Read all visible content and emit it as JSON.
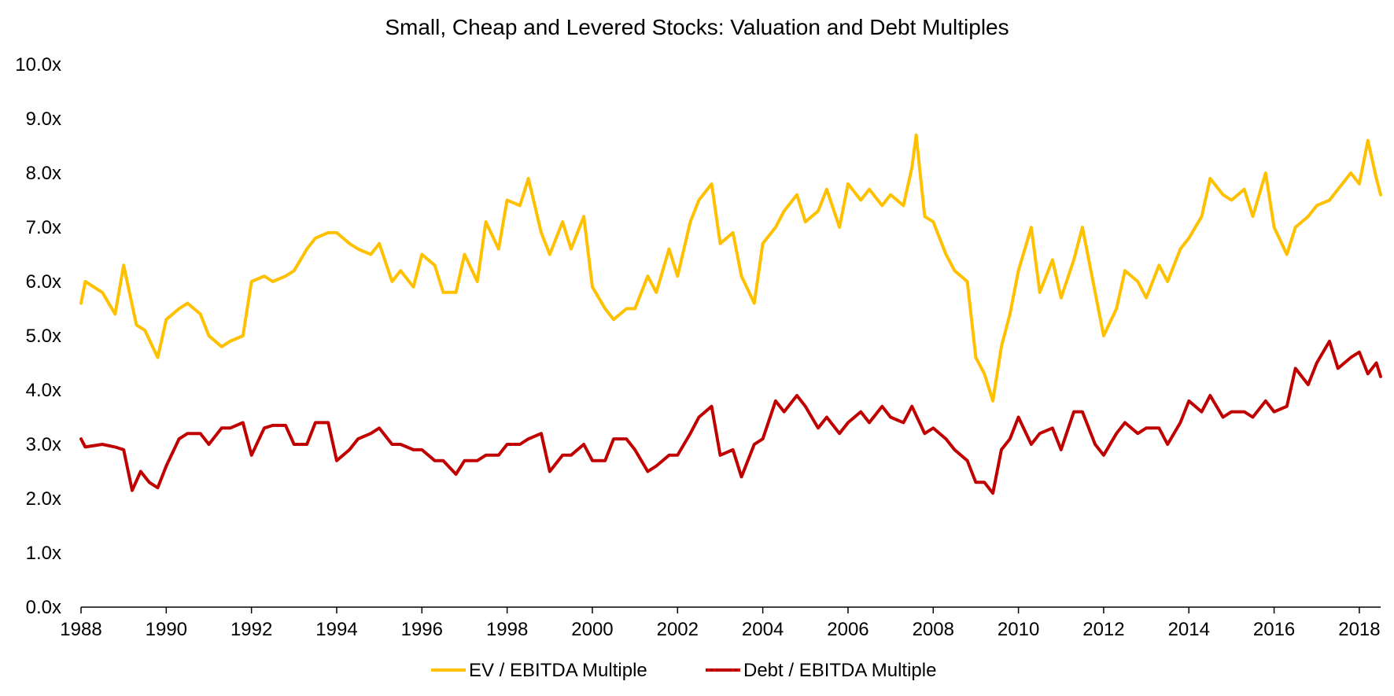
{
  "chart_data": {
    "type": "line",
    "title": "Small, Cheap and Levered Stocks: Valuation and Debt Multiples",
    "xlabel": "",
    "ylabel": "",
    "xlim": [
      1988,
      2018.5
    ],
    "ylim": [
      0,
      10
    ],
    "x_ticks": [
      1988,
      1990,
      1992,
      1994,
      1996,
      1998,
      2000,
      2002,
      2004,
      2006,
      2008,
      2010,
      2012,
      2014,
      2016,
      2018
    ],
    "y_ticks": [
      "0.0x",
      "1.0x",
      "2.0x",
      "3.0x",
      "4.0x",
      "5.0x",
      "6.0x",
      "7.0x",
      "8.0x",
      "9.0x",
      "10.0x"
    ],
    "grid": false,
    "legend_position": "bottom",
    "series": [
      {
        "name": "EV / EBITDA Multiple",
        "color": "#FFC000",
        "x": [
          1988.0,
          1988.1,
          1988.5,
          1988.8,
          1989.0,
          1989.3,
          1989.5,
          1989.8,
          1990.0,
          1990.3,
          1990.5,
          1990.8,
          1991.0,
          1991.3,
          1991.5,
          1991.8,
          1992.0,
          1992.3,
          1992.5,
          1992.8,
          1993.0,
          1993.3,
          1993.5,
          1993.8,
          1994.0,
          1994.3,
          1994.5,
          1994.8,
          1995.0,
          1995.3,
          1995.5,
          1995.8,
          1996.0,
          1996.3,
          1996.5,
          1996.8,
          1997.0,
          1997.3,
          1997.5,
          1997.8,
          1998.0,
          1998.3,
          1998.5,
          1998.8,
          1999.0,
          1999.3,
          1999.5,
          1999.8,
          2000.0,
          2000.3,
          2000.5,
          2000.8,
          2001.0,
          2001.3,
          2001.5,
          2001.8,
          2002.0,
          2002.3,
          2002.5,
          2002.8,
          2003.0,
          2003.3,
          2003.5,
          2003.8,
          2004.0,
          2004.3,
          2004.5,
          2004.8,
          2005.0,
          2005.3,
          2005.5,
          2005.8,
          2006.0,
          2006.3,
          2006.5,
          2006.8,
          2007.0,
          2007.3,
          2007.5,
          2007.6,
          2007.8,
          2008.0,
          2008.3,
          2008.5,
          2008.8,
          2009.0,
          2009.2,
          2009.4,
          2009.6,
          2009.8,
          2010.0,
          2010.3,
          2010.5,
          2010.8,
          2011.0,
          2011.3,
          2011.5,
          2011.8,
          2012.0,
          2012.3,
          2012.5,
          2012.8,
          2013.0,
          2013.3,
          2013.5,
          2013.8,
          2014.0,
          2014.3,
          2014.5,
          2014.8,
          2015.0,
          2015.3,
          2015.5,
          2015.8,
          2016.0,
          2016.3,
          2016.5,
          2016.8,
          2017.0,
          2017.3,
          2017.5,
          2017.8,
          2018.0,
          2018.2,
          2018.4,
          2018.5
        ],
        "values": [
          5.6,
          6.0,
          5.8,
          5.4,
          6.3,
          5.2,
          5.1,
          4.6,
          5.3,
          5.5,
          5.6,
          5.4,
          5.0,
          4.8,
          4.9,
          5.0,
          6.0,
          6.1,
          6.0,
          6.1,
          6.2,
          6.6,
          6.8,
          6.9,
          6.9,
          6.7,
          6.6,
          6.5,
          6.7,
          6.0,
          6.2,
          5.9,
          6.5,
          6.3,
          5.8,
          5.8,
          6.5,
          6.0,
          7.1,
          6.6,
          7.5,
          7.4,
          7.9,
          6.9,
          6.5,
          7.1,
          6.6,
          7.2,
          5.9,
          5.5,
          5.3,
          5.5,
          5.5,
          6.1,
          5.8,
          6.6,
          6.1,
          7.1,
          7.5,
          7.8,
          6.7,
          6.9,
          6.1,
          5.6,
          6.7,
          7.0,
          7.3,
          7.6,
          7.1,
          7.3,
          7.7,
          7.0,
          7.8,
          7.5,
          7.7,
          7.4,
          7.6,
          7.4,
          8.1,
          8.7,
          7.2,
          7.1,
          6.5,
          6.2,
          6.0,
          4.6,
          4.3,
          3.8,
          4.8,
          5.4,
          6.2,
          7.0,
          5.8,
          6.4,
          5.7,
          6.4,
          7.0,
          5.8,
          5.0,
          5.5,
          6.2,
          6.0,
          5.7,
          6.3,
          6.0,
          6.6,
          6.8,
          7.2,
          7.9,
          7.6,
          7.5,
          7.7,
          7.2,
          8.0,
          7.0,
          6.5,
          7.0,
          7.2,
          7.4,
          7.5,
          7.7,
          8.0,
          7.8,
          8.6,
          7.9,
          7.6
        ],
        "shapes": []
      },
      {
        "name": "Debt / EBITDA Multiple",
        "color": "#C00000",
        "x": [
          1988.0,
          1988.1,
          1988.5,
          1988.8,
          1989.0,
          1989.2,
          1989.4,
          1989.6,
          1989.8,
          1990.0,
          1990.3,
          1990.5,
          1990.8,
          1991.0,
          1991.3,
          1991.5,
          1991.8,
          1992.0,
          1992.3,
          1992.5,
          1992.8,
          1993.0,
          1993.3,
          1993.5,
          1993.8,
          1994.0,
          1994.3,
          1994.5,
          1994.8,
          1995.0,
          1995.3,
          1995.5,
          1995.8,
          1996.0,
          1996.3,
          1996.5,
          1996.8,
          1997.0,
          1997.3,
          1997.5,
          1997.8,
          1998.0,
          1998.3,
          1998.5,
          1998.8,
          1999.0,
          1999.3,
          1999.5,
          1999.8,
          2000.0,
          2000.3,
          2000.5,
          2000.8,
          2001.0,
          2001.3,
          2001.5,
          2001.8,
          2002.0,
          2002.3,
          2002.5,
          2002.8,
          2003.0,
          2003.3,
          2003.5,
          2003.8,
          2004.0,
          2004.3,
          2004.5,
          2004.8,
          2005.0,
          2005.3,
          2005.5,
          2005.8,
          2006.0,
          2006.3,
          2006.5,
          2006.8,
          2007.0,
          2007.3,
          2007.5,
          2007.8,
          2008.0,
          2008.3,
          2008.5,
          2008.8,
          2009.0,
          2009.2,
          2009.4,
          2009.6,
          2009.8,
          2010.0,
          2010.3,
          2010.5,
          2010.8,
          2011.0,
          2011.3,
          2011.5,
          2011.8,
          2012.0,
          2012.3,
          2012.5,
          2012.8,
          2013.0,
          2013.3,
          2013.5,
          2013.8,
          2014.0,
          2014.3,
          2014.5,
          2014.8,
          2015.0,
          2015.3,
          2015.5,
          2015.8,
          2016.0,
          2016.3,
          2016.5,
          2016.8,
          2017.0,
          2017.3,
          2017.5,
          2017.8,
          2018.0,
          2018.2,
          2018.4,
          2018.5
        ],
        "values": [
          3.1,
          2.95,
          3.0,
          2.95,
          2.9,
          2.15,
          2.5,
          2.3,
          2.2,
          2.6,
          3.1,
          3.2,
          3.2,
          3.0,
          3.3,
          3.3,
          3.4,
          2.8,
          3.3,
          3.35,
          3.35,
          3.0,
          3.0,
          3.4,
          3.4,
          2.7,
          2.9,
          3.1,
          3.2,
          3.3,
          3.0,
          3.0,
          2.9,
          2.9,
          2.7,
          2.7,
          2.45,
          2.7,
          2.7,
          2.8,
          2.8,
          3.0,
          3.0,
          3.1,
          3.2,
          2.5,
          2.8,
          2.8,
          3.0,
          2.7,
          2.7,
          3.1,
          3.1,
          2.9,
          2.5,
          2.6,
          2.8,
          2.8,
          3.2,
          3.5,
          3.7,
          2.8,
          2.9,
          2.4,
          3.0,
          3.1,
          3.8,
          3.6,
          3.9,
          3.7,
          3.3,
          3.5,
          3.2,
          3.4,
          3.6,
          3.4,
          3.7,
          3.5,
          3.4,
          3.7,
          3.2,
          3.3,
          3.1,
          2.9,
          2.7,
          2.3,
          2.3,
          2.1,
          2.9,
          3.1,
          3.5,
          3.0,
          3.2,
          3.3,
          2.9,
          3.6,
          3.6,
          3.0,
          2.8,
          3.2,
          3.4,
          3.2,
          3.3,
          3.3,
          3.0,
          3.4,
          3.8,
          3.6,
          3.9,
          3.5,
          3.6,
          3.6,
          3.5,
          3.8,
          3.6,
          3.7,
          4.4,
          4.1,
          4.5,
          4.9,
          4.4,
          4.6,
          4.7,
          4.3,
          4.5,
          4.25
        ]
      }
    ]
  }
}
